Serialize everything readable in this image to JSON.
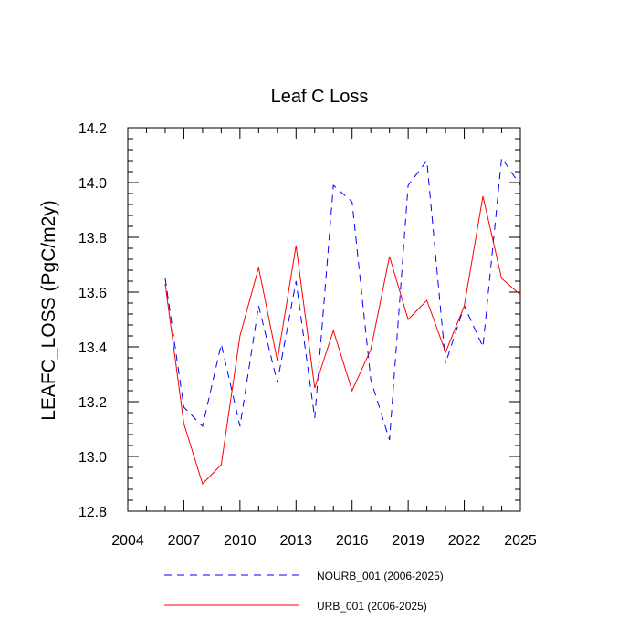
{
  "chart_data": {
    "type": "line",
    "title": "Leaf C Loss",
    "xlabel": "",
    "ylabel": "LEAFC_LOSS  (PgC/m2y)",
    "xlim": [
      2004,
      2025
    ],
    "ylim": [
      12.8,
      14.2
    ],
    "x_ticks": [
      2004,
      2007,
      2010,
      2013,
      2016,
      2019,
      2022,
      2025
    ],
    "y_ticks": [
      12.8,
      13.0,
      13.2,
      13.4,
      13.6,
      13.8,
      14.0,
      14.2
    ],
    "y_tick_labels": [
      "12.8",
      "13.0",
      "13.2",
      "13.4",
      "13.6",
      "13.8",
      "14.0",
      "14.2"
    ],
    "legend_position": "bottom",
    "x": [
      2006,
      2007,
      2008,
      2009,
      2010,
      2011,
      2012,
      2013,
      2014,
      2015,
      2016,
      2017,
      2018,
      2019,
      2020,
      2021,
      2022,
      2023,
      2024,
      2025
    ],
    "series": [
      {
        "name": "NOURB_001 (2006-2025)",
        "color": "#0000ff",
        "style": "dashed",
        "values": [
          13.65,
          13.18,
          13.11,
          13.41,
          13.11,
          13.55,
          13.27,
          13.64,
          13.14,
          13.99,
          13.93,
          13.28,
          13.06,
          13.99,
          14.08,
          13.34,
          13.55,
          13.4,
          14.09,
          13.99
        ]
      },
      {
        "name": "URB_001 (2006-2025)",
        "color": "#ff0000",
        "style": "solid",
        "values": [
          13.63,
          13.12,
          12.9,
          12.97,
          13.44,
          13.69,
          13.35,
          13.77,
          13.25,
          13.46,
          13.24,
          13.39,
          13.73,
          13.5,
          13.57,
          13.38,
          13.55,
          13.95,
          13.65,
          13.59
        ]
      }
    ]
  }
}
